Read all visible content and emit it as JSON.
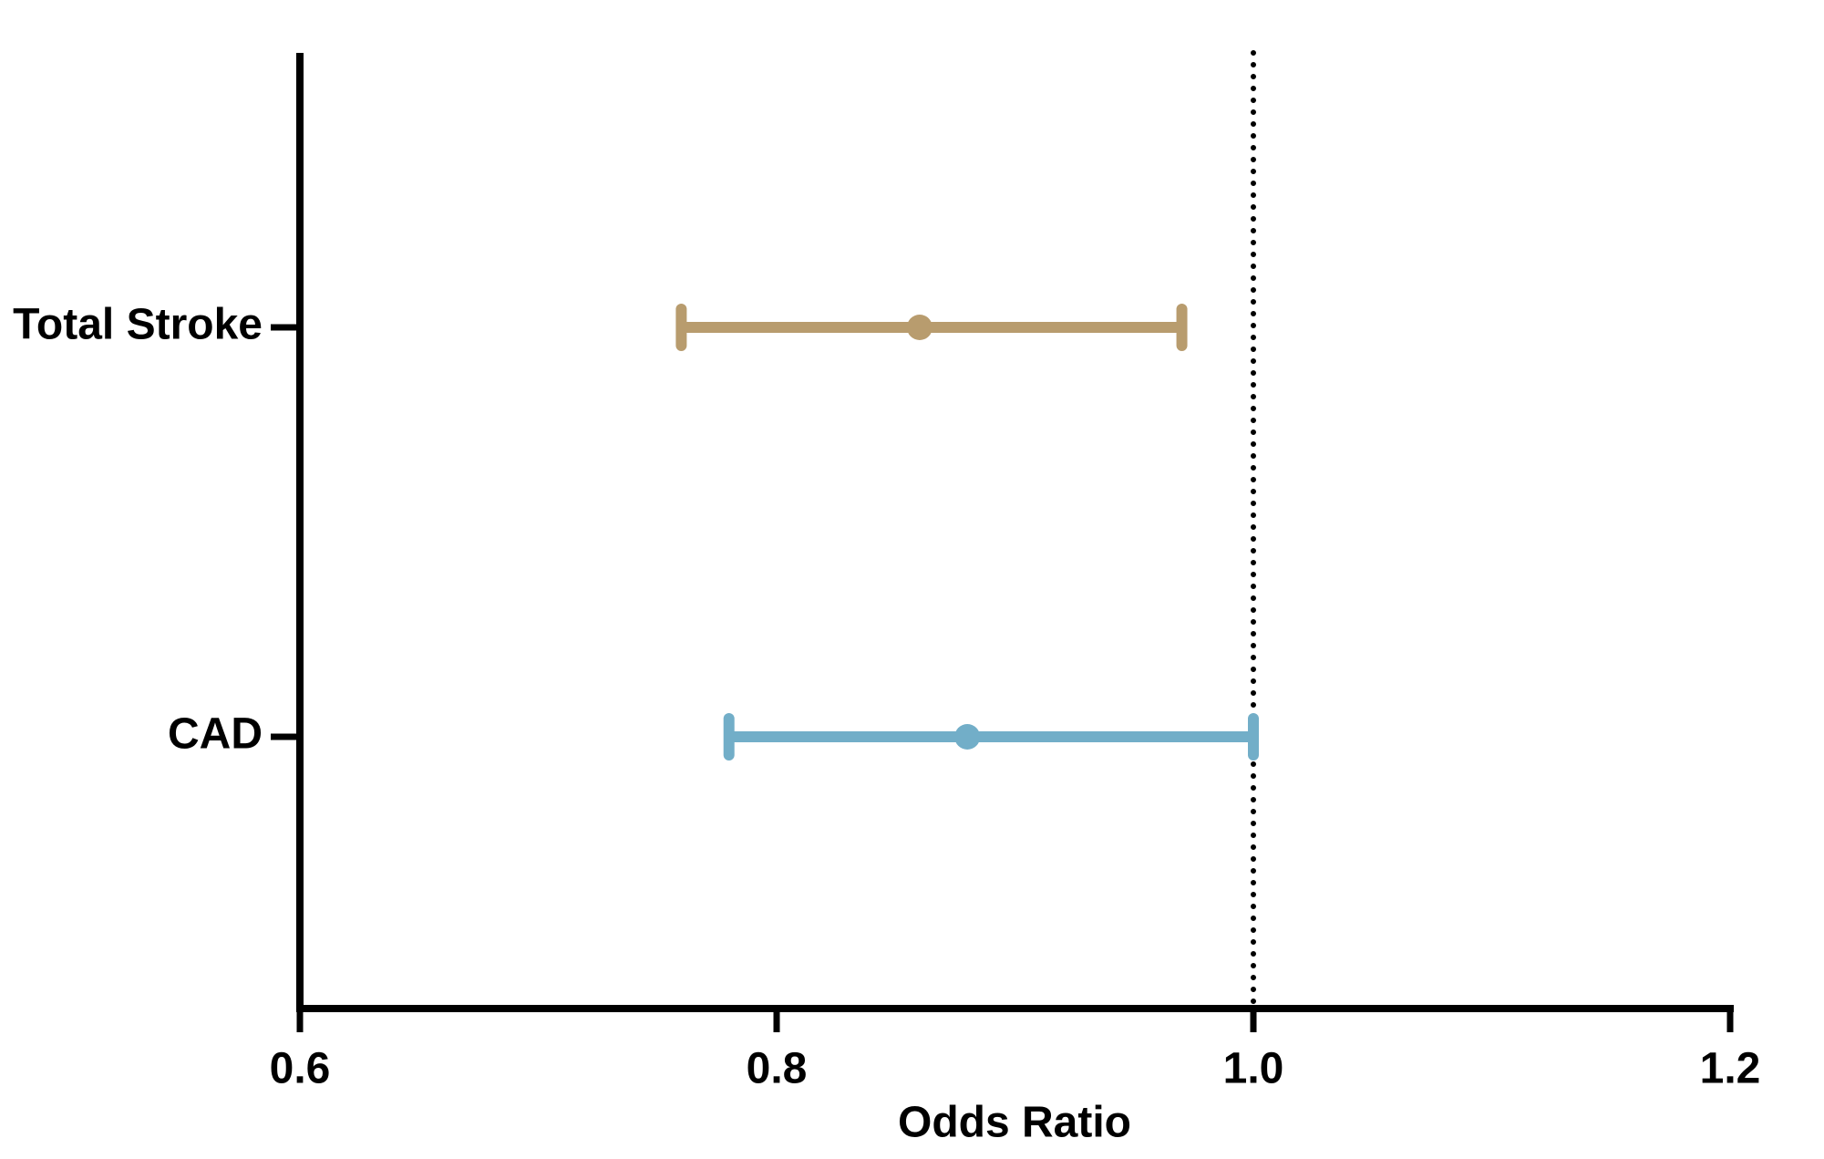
{
  "chart_data": {
    "type": "forest",
    "categories": [
      "Total Stroke",
      "CAD"
    ],
    "values": [
      0.86,
      0.88
    ],
    "ci_lower": [
      0.76,
      0.78
    ],
    "ci_upper": [
      0.97,
      1.0
    ],
    "colors": [
      "#b89c6e",
      "#72aec8"
    ],
    "x_label": "Odds Ratio",
    "xlim": [
      0.6,
      1.2
    ],
    "xticks": [
      0.6,
      0.8,
      {
        "value": 1,
        "label": "1.0"
      },
      1.2
    ],
    "reference_line": 1
  }
}
